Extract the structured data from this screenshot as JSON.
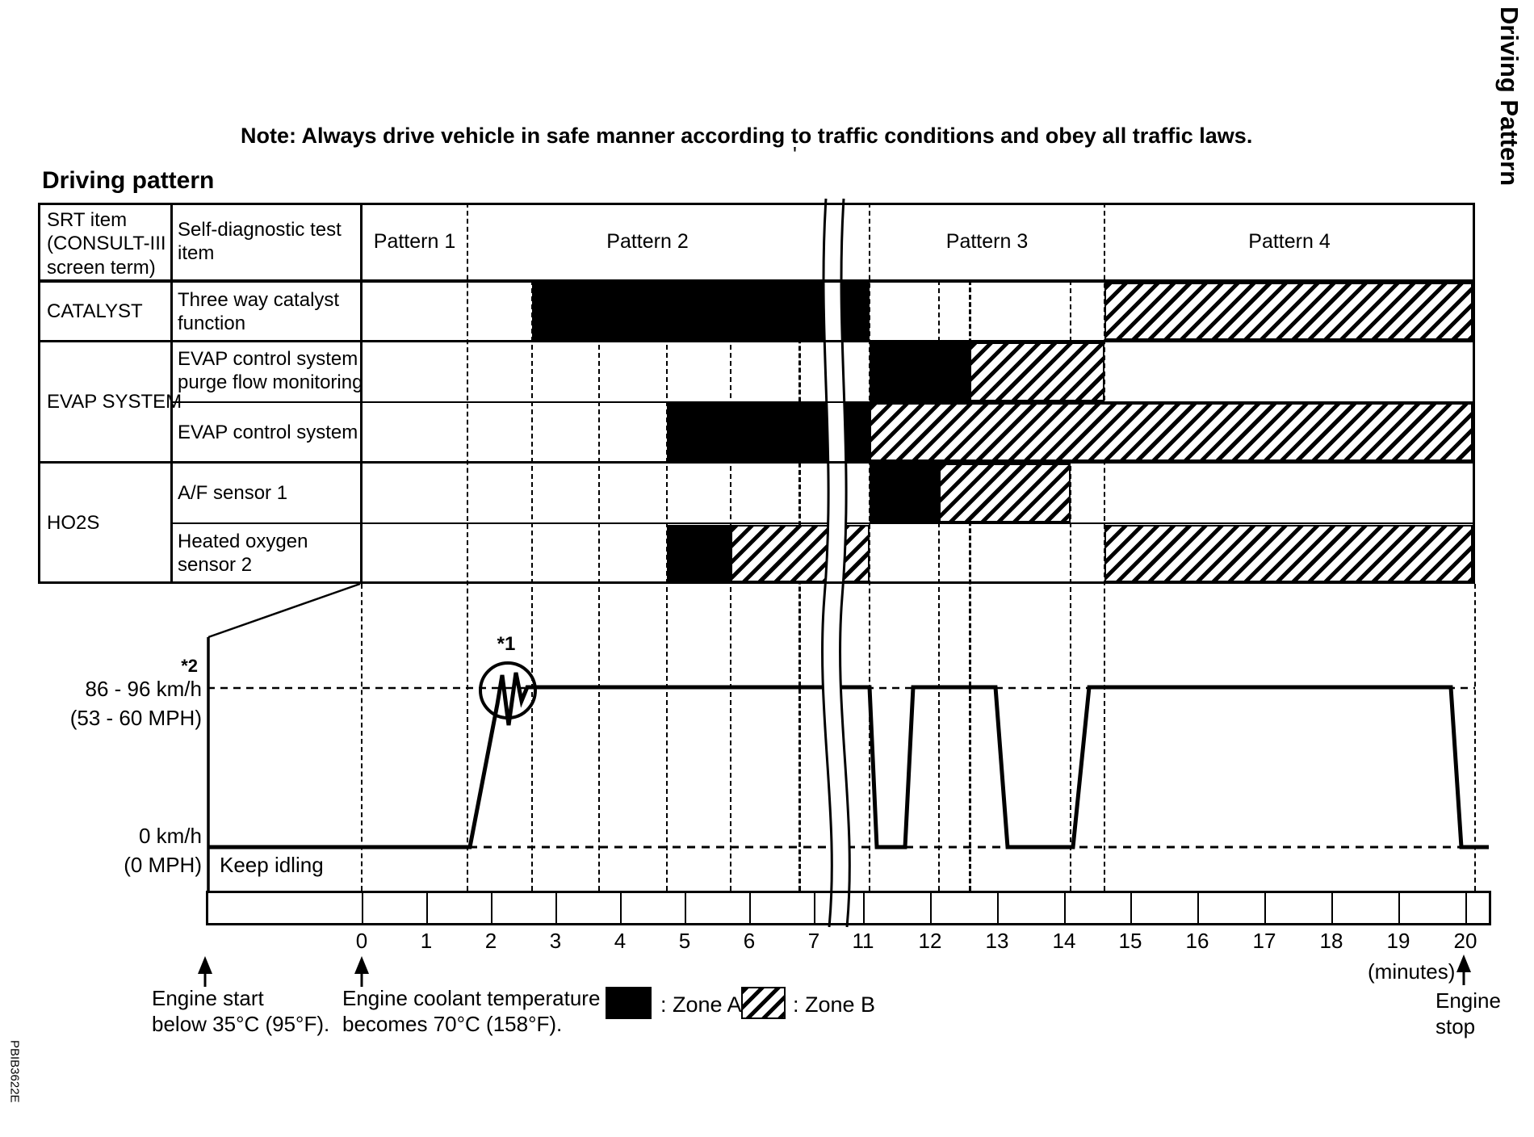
{
  "page": {
    "title": "Driving pattern",
    "note": "Note: Always drive vehicle in safe manner according to traffic conditions and obey all traffic laws.",
    "side_title": "Driving Pattern",
    "doc_code": "PBIB3622E",
    "stray_mark": "'"
  },
  "table": {
    "header": {
      "col1": "SRT item\n(CONSULT-III\nscreen term)",
      "col2": "Self-diagnostic test\nitem"
    },
    "patterns": [
      "Pattern 1",
      "Pattern 2",
      "Pattern 3",
      "Pattern 4"
    ],
    "srt_groups": [
      "CATALYST",
      "EVAP SYSTEM",
      "HO2S"
    ],
    "test_items": [
      "Three way catalyst\nfunction",
      "EVAP control system\npurge flow monitoring",
      "EVAP control system",
      "A/F sensor 1",
      "Heated oxygen\nsensor 2"
    ]
  },
  "graph": {
    "speed_high": "86 - 96 km/h",
    "speed_high_mph": "(53 - 60 MPH)",
    "speed_low": "0 km/h",
    "speed_low_mph": "(0 MPH)",
    "idle_label": "Keep idling",
    "note1": "*1",
    "note2": "*2"
  },
  "axis": {
    "ticks": [
      "0",
      "1",
      "2",
      "3",
      "4",
      "5",
      "6",
      "7",
      "11",
      "12",
      "13",
      "14",
      "15",
      "16",
      "17",
      "18",
      "19",
      "20"
    ],
    "unit": "(minutes)"
  },
  "annotations": {
    "engine_start": "Engine start\nbelow 35°C (95°F).",
    "engine_coolant": "Engine coolant temperature\nbecomes 70°C (158°F).",
    "engine_stop": "Engine\nstop"
  },
  "legend": {
    "zone_a_label": ": Zone A",
    "zone_b_label": ": Zone B",
    "zone_a_color": "#000000",
    "zone_b_pattern": "diagonal-hatch"
  }
}
